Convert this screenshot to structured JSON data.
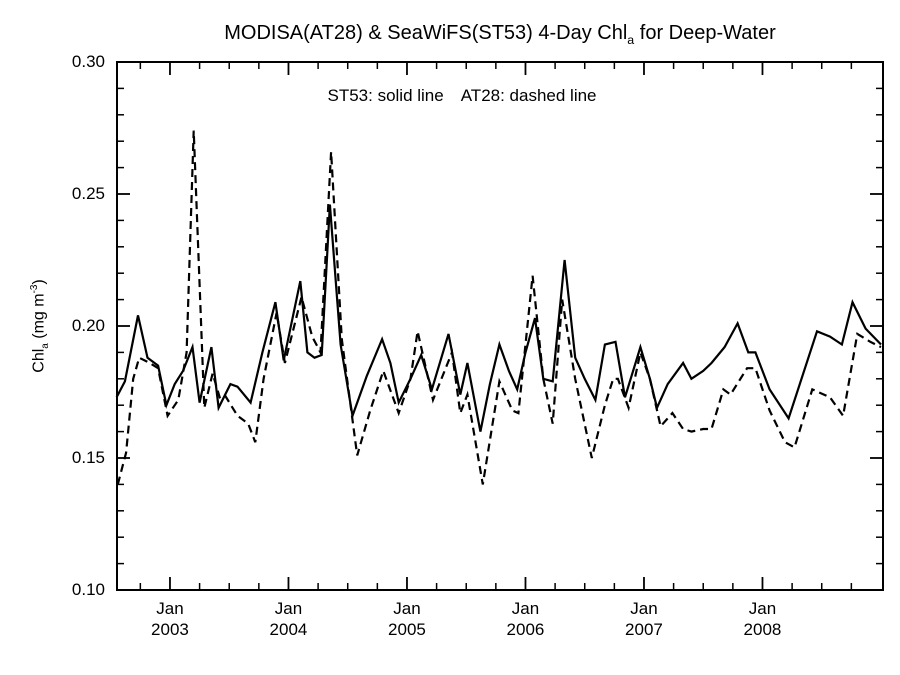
{
  "chart": {
    "title": {
      "prefix": "MODISA(AT28) & SeaWiFS(ST53) 4-Day Chl",
      "sub": "a",
      "suffix": " for Deep-Water"
    },
    "legend": {
      "st53": "ST53: solid line",
      "at28": "AT28: dashed line"
    },
    "ylabel": {
      "prefix": "Chl",
      "sub": "a",
      "mid": " (mg m",
      "sup": "-3",
      "suffix": ")"
    },
    "colors": {
      "line": "#000000",
      "background": "#ffffff"
    }
  },
  "chart_data": {
    "type": "line",
    "title": "MODISA(AT28) & SeaWiFS(ST53) 4-Day Chl_a for Deep-Water",
    "xlabel": "",
    "ylabel": "Chl_a (mg m^-3)",
    "legend_note": "ST53: solid line   AT28: dashed line",
    "legend_position": "top-center-inside",
    "grid": false,
    "x_range": [
      2002.553,
      2009.017
    ],
    "y_range": [
      0.1,
      0.3
    ],
    "x_major_ticks": [
      2003,
      2004,
      2005,
      2006,
      2007,
      2008
    ],
    "x_tick_labels": [
      [
        "Jan",
        "2003"
      ],
      [
        "Jan",
        "2004"
      ],
      [
        "Jan",
        "2005"
      ],
      [
        "Jan",
        "2006"
      ],
      [
        "Jan",
        "2007"
      ],
      [
        "Jan",
        "2008"
      ]
    ],
    "x_minor_step": 0.25,
    "y_major_ticks": [
      0.3,
      0.25,
      0.2,
      0.15,
      0.1
    ],
    "y_tick_labels": [
      "0.30",
      "0.25",
      "0.20",
      "0.15",
      "0.10"
    ],
    "y_minor_step": 0.01,
    "series": [
      {
        "name": "ST53",
        "instrument": "SeaWiFS",
        "style": "solid",
        "color": "#000000",
        "points": [
          [
            2002.55,
            0.173
          ],
          [
            2002.62,
            0.179
          ],
          [
            2002.73,
            0.204
          ],
          [
            2002.81,
            0.188
          ],
          [
            2002.9,
            0.185
          ],
          [
            2002.97,
            0.17
          ],
          [
            2003.04,
            0.178
          ],
          [
            2003.11,
            0.183
          ],
          [
            2003.19,
            0.192
          ],
          [
            2003.25,
            0.171
          ],
          [
            2003.35,
            0.192
          ],
          [
            2003.41,
            0.169
          ],
          [
            2003.51,
            0.178
          ],
          [
            2003.57,
            0.177
          ],
          [
            2003.68,
            0.171
          ],
          [
            2003.78,
            0.19
          ],
          [
            2003.89,
            0.209
          ],
          [
            2003.96,
            0.187
          ],
          [
            2004.1,
            0.217
          ],
          [
            2004.16,
            0.19
          ],
          [
            2004.22,
            0.188
          ],
          [
            2004.28,
            0.189
          ],
          [
            2004.35,
            0.246
          ],
          [
            2004.44,
            0.193
          ],
          [
            2004.54,
            0.166
          ],
          [
            2004.66,
            0.181
          ],
          [
            2004.79,
            0.195
          ],
          [
            2004.86,
            0.186
          ],
          [
            2004.93,
            0.171
          ],
          [
            2005.03,
            0.18
          ],
          [
            2005.12,
            0.189
          ],
          [
            2005.21,
            0.176
          ],
          [
            2005.35,
            0.197
          ],
          [
            2005.45,
            0.174
          ],
          [
            2005.51,
            0.186
          ],
          [
            2005.62,
            0.16
          ],
          [
            2005.7,
            0.178
          ],
          [
            2005.78,
            0.193
          ],
          [
            2005.86,
            0.183
          ],
          [
            2005.93,
            0.176
          ],
          [
            2006.0,
            0.19
          ],
          [
            2006.08,
            0.203
          ],
          [
            2006.15,
            0.18
          ],
          [
            2006.23,
            0.179
          ],
          [
            2006.33,
            0.225
          ],
          [
            2006.42,
            0.188
          ],
          [
            2006.5,
            0.18
          ],
          [
            2006.59,
            0.172
          ],
          [
            2006.67,
            0.193
          ],
          [
            2006.76,
            0.194
          ],
          [
            2006.84,
            0.173
          ],
          [
            2006.97,
            0.192
          ],
          [
            2007.05,
            0.18
          ],
          [
            2007.11,
            0.169
          ],
          [
            2007.2,
            0.178
          ],
          [
            2007.33,
            0.186
          ],
          [
            2007.4,
            0.18
          ],
          [
            2007.5,
            0.183
          ],
          [
            2007.57,
            0.186
          ],
          [
            2007.68,
            0.192
          ],
          [
            2007.79,
            0.201
          ],
          [
            2007.88,
            0.19
          ],
          [
            2007.94,
            0.19
          ],
          [
            2008.06,
            0.176
          ],
          [
            2008.22,
            0.165
          ],
          [
            2008.46,
            0.198
          ],
          [
            2008.57,
            0.196
          ],
          [
            2008.67,
            0.193
          ],
          [
            2008.76,
            0.209
          ],
          [
            2008.87,
            0.199
          ],
          [
            2009.0,
            0.193
          ]
        ]
      },
      {
        "name": "AT28",
        "instrument": "MODISA",
        "style": "dashed",
        "color": "#000000",
        "points": [
          [
            2002.56,
            0.14
          ],
          [
            2002.63,
            0.152
          ],
          [
            2002.69,
            0.18
          ],
          [
            2002.74,
            0.188
          ],
          [
            2002.83,
            0.186
          ],
          [
            2002.9,
            0.184
          ],
          [
            2002.98,
            0.166
          ],
          [
            2003.07,
            0.172
          ],
          [
            2003.14,
            0.19
          ],
          [
            2003.2,
            0.274
          ],
          [
            2003.29,
            0.169
          ],
          [
            2003.36,
            0.182
          ],
          [
            2003.42,
            0.173
          ],
          [
            2003.46,
            0.174
          ],
          [
            2003.57,
            0.166
          ],
          [
            2003.66,
            0.163
          ],
          [
            2003.72,
            0.156
          ],
          [
            2003.79,
            0.18
          ],
          [
            2003.9,
            0.205
          ],
          [
            2003.97,
            0.186
          ],
          [
            2004.11,
            0.211
          ],
          [
            2004.2,
            0.196
          ],
          [
            2004.27,
            0.19
          ],
          [
            2004.36,
            0.266
          ],
          [
            2004.45,
            0.195
          ],
          [
            2004.58,
            0.151
          ],
          [
            2004.69,
            0.168
          ],
          [
            2004.8,
            0.183
          ],
          [
            2004.93,
            0.167
          ],
          [
            2005.03,
            0.18
          ],
          [
            2005.09,
            0.198
          ],
          [
            2005.22,
            0.172
          ],
          [
            2005.38,
            0.19
          ],
          [
            2005.45,
            0.167
          ],
          [
            2005.51,
            0.174
          ],
          [
            2005.64,
            0.14
          ],
          [
            2005.78,
            0.179
          ],
          [
            2005.89,
            0.168
          ],
          [
            2005.94,
            0.167
          ],
          [
            2006.06,
            0.219
          ],
          [
            2006.15,
            0.18
          ],
          [
            2006.23,
            0.163
          ],
          [
            2006.31,
            0.21
          ],
          [
            2006.42,
            0.18
          ],
          [
            2006.56,
            0.15
          ],
          [
            2006.67,
            0.17
          ],
          [
            2006.74,
            0.18
          ],
          [
            2006.78,
            0.18
          ],
          [
            2006.87,
            0.169
          ],
          [
            2006.97,
            0.19
          ],
          [
            2007.05,
            0.18
          ],
          [
            2007.14,
            0.162
          ],
          [
            2007.24,
            0.167
          ],
          [
            2007.33,
            0.161
          ],
          [
            2007.4,
            0.16
          ],
          [
            2007.5,
            0.161
          ],
          [
            2007.57,
            0.161
          ],
          [
            2007.67,
            0.176
          ],
          [
            2007.73,
            0.174
          ],
          [
            2007.87,
            0.184
          ],
          [
            2007.94,
            0.184
          ],
          [
            2008.06,
            0.168
          ],
          [
            2008.19,
            0.156
          ],
          [
            2008.27,
            0.154
          ],
          [
            2008.42,
            0.176
          ],
          [
            2008.57,
            0.173
          ],
          [
            2008.68,
            0.166
          ],
          [
            2008.8,
            0.197
          ],
          [
            2008.91,
            0.194
          ],
          [
            2009.0,
            0.192
          ]
        ]
      }
    ]
  }
}
